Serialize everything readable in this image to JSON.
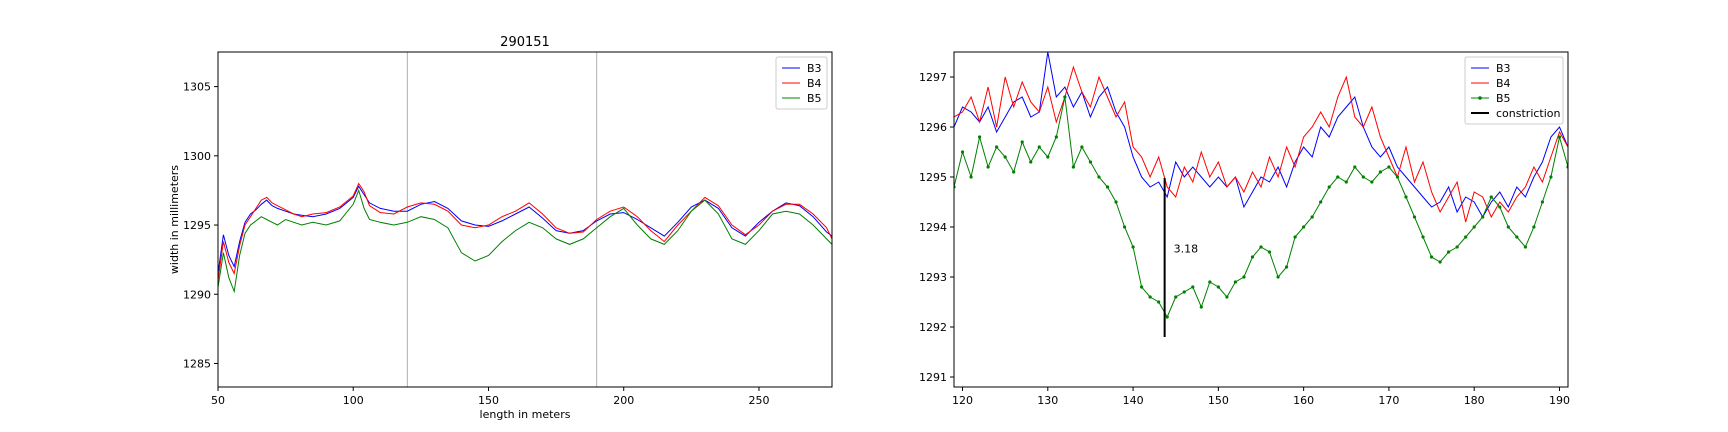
{
  "chart_data": [
    {
      "type": "line",
      "title": "290151",
      "xlabel": "length in meters",
      "ylabel": "width in millimeters",
      "xlim": [
        50,
        277
      ],
      "ylim": [
        1283.3,
        1307.5
      ],
      "xticks": [
        50,
        100,
        150,
        200,
        250
      ],
      "yticks": [
        1285,
        1290,
        1295,
        1300,
        1305
      ],
      "vlines": [
        120,
        190
      ],
      "legend": "top-right",
      "grid": false,
      "colors": {
        "B3": "#0000ff",
        "B4": "#ff0000",
        "B5": "#008000"
      },
      "series": [
        {
          "name": "B3",
          "x": [
            50,
            52,
            54,
            56,
            58,
            60,
            62,
            64,
            66,
            68,
            70,
            72,
            75,
            78,
            81,
            85,
            90,
            95,
            100,
            102,
            104,
            106,
            110,
            115,
            120,
            125,
            130,
            135,
            140,
            145,
            150,
            155,
            160,
            165,
            170,
            175,
            180,
            185,
            190,
            195,
            200,
            205,
            210,
            215,
            220,
            225,
            230,
            235,
            240,
            245,
            250,
            255,
            260,
            265,
            270,
            275,
            277
          ],
          "y": [
            1291.5,
            1294.3,
            1292.8,
            1292.0,
            1293.8,
            1295.2,
            1295.8,
            1296.1,
            1296.5,
            1296.8,
            1296.4,
            1296.2,
            1296.0,
            1295.8,
            1295.7,
            1295.6,
            1295.8,
            1296.2,
            1297.0,
            1297.8,
            1297.2,
            1296.6,
            1296.2,
            1296.0,
            1296.0,
            1296.5,
            1296.7,
            1296.2,
            1295.3,
            1295.0,
            1294.9,
            1295.3,
            1295.8,
            1296.3,
            1295.5,
            1294.6,
            1294.4,
            1294.6,
            1295.3,
            1295.8,
            1295.9,
            1295.4,
            1294.8,
            1294.2,
            1295.2,
            1296.3,
            1296.8,
            1296.2,
            1294.8,
            1294.2,
            1295.2,
            1296.0,
            1296.6,
            1296.4,
            1295.6,
            1294.5,
            1294.2
          ]
        },
        {
          "name": "B4",
          "x": [
            50,
            52,
            54,
            56,
            58,
            60,
            62,
            64,
            66,
            68,
            70,
            72,
            75,
            78,
            81,
            85,
            90,
            95,
            100,
            102,
            104,
            106,
            110,
            115,
            120,
            125,
            130,
            135,
            140,
            145,
            150,
            155,
            160,
            165,
            170,
            175,
            180,
            185,
            190,
            195,
            200,
            205,
            210,
            215,
            220,
            225,
            230,
            235,
            240,
            245,
            250,
            255,
            260,
            265,
            270,
            275,
            277
          ],
          "y": [
            1291.0,
            1293.8,
            1292.3,
            1291.5,
            1293.5,
            1295.0,
            1295.6,
            1296.2,
            1296.8,
            1297.0,
            1296.6,
            1296.4,
            1296.1,
            1295.8,
            1295.6,
            1295.8,
            1295.9,
            1296.3,
            1297.1,
            1298.0,
            1297.4,
            1296.4,
            1295.9,
            1295.8,
            1296.3,
            1296.6,
            1296.5,
            1296.0,
            1295.0,
            1294.8,
            1295.0,
            1295.6,
            1296.0,
            1296.6,
            1295.8,
            1294.8,
            1294.4,
            1294.5,
            1295.4,
            1296.0,
            1296.3,
            1295.6,
            1294.6,
            1293.8,
            1295.0,
            1296.0,
            1297.0,
            1296.4,
            1295.0,
            1294.3,
            1295.0,
            1296.0,
            1296.5,
            1296.5,
            1295.8,
            1294.8,
            1294.0
          ]
        },
        {
          "name": "B5",
          "x": [
            50,
            52,
            54,
            56,
            58,
            60,
            62,
            64,
            66,
            68,
            70,
            72,
            75,
            78,
            81,
            85,
            90,
            95,
            100,
            102,
            104,
            106,
            110,
            115,
            120,
            125,
            130,
            135,
            140,
            145,
            150,
            155,
            160,
            165,
            170,
            175,
            180,
            185,
            190,
            195,
            200,
            205,
            210,
            215,
            220,
            225,
            230,
            235,
            240,
            245,
            250,
            255,
            260,
            265,
            270,
            275,
            277
          ],
          "y": [
            1290.5,
            1293.0,
            1291.2,
            1290.2,
            1292.8,
            1294.4,
            1295.0,
            1295.3,
            1295.6,
            1295.4,
            1295.2,
            1295.0,
            1295.4,
            1295.2,
            1295.0,
            1295.2,
            1295.0,
            1295.3,
            1296.5,
            1297.5,
            1296.2,
            1295.4,
            1295.2,
            1295.0,
            1295.2,
            1295.6,
            1295.4,
            1294.8,
            1293.0,
            1292.4,
            1292.8,
            1293.8,
            1294.6,
            1295.2,
            1294.8,
            1294.0,
            1293.6,
            1294.0,
            1294.8,
            1295.6,
            1296.2,
            1295.0,
            1294.0,
            1293.6,
            1294.6,
            1296.0,
            1296.8,
            1295.8,
            1294.0,
            1293.6,
            1294.6,
            1295.8,
            1296.0,
            1295.8,
            1295.0,
            1294.0,
            1293.6
          ]
        }
      ]
    },
    {
      "type": "line",
      "title": "",
      "xlabel": "",
      "ylabel": "",
      "xlim": [
        119,
        191
      ],
      "ylim": [
        1290.8,
        1297.5
      ],
      "xticks": [
        120,
        130,
        140,
        150,
        160,
        170,
        180,
        190
      ],
      "yticks": [
        1291,
        1292,
        1293,
        1294,
        1295,
        1296,
        1297
      ],
      "legend": "top-right",
      "grid": false,
      "colors": {
        "B3": "#0000ff",
        "B4": "#ff0000",
        "B5": "#008000",
        "constriction": "#000000"
      },
      "constriction": {
        "x": 143.7,
        "y_from": 1291.8,
        "y_to": 1294.98,
        "label": "3.18"
      },
      "series": [
        {
          "name": "B3",
          "x": [
            119,
            120,
            121,
            122,
            123,
            124,
            125,
            126,
            127,
            128,
            129,
            130,
            131,
            132,
            133,
            134,
            135,
            136,
            137,
            138,
            139,
            140,
            141,
            142,
            143,
            144,
            145,
            146,
            147,
            148,
            149,
            150,
            151,
            152,
            153,
            154,
            155,
            156,
            157,
            158,
            159,
            160,
            161,
            162,
            163,
            164,
            165,
            166,
            167,
            168,
            169,
            170,
            171,
            172,
            173,
            174,
            175,
            176,
            177,
            178,
            179,
            180,
            181,
            182,
            183,
            184,
            185,
            186,
            187,
            188,
            189,
            190,
            191
          ],
          "y": [
            1296.0,
            1296.4,
            1296.3,
            1296.1,
            1296.4,
            1295.9,
            1296.2,
            1296.5,
            1296.6,
            1296.2,
            1296.3,
            1297.5,
            1296.6,
            1296.8,
            1296.4,
            1296.7,
            1296.2,
            1296.6,
            1296.8,
            1296.3,
            1296.0,
            1295.4,
            1295.0,
            1294.8,
            1294.9,
            1294.6,
            1295.3,
            1295.0,
            1295.2,
            1295.0,
            1294.8,
            1295.0,
            1294.8,
            1295.0,
            1294.4,
            1294.7,
            1295.0,
            1294.9,
            1295.2,
            1294.8,
            1295.3,
            1295.6,
            1295.4,
            1296.0,
            1295.8,
            1296.2,
            1296.4,
            1296.6,
            1296.0,
            1295.6,
            1295.4,
            1295.6,
            1295.2,
            1295.0,
            1294.8,
            1294.6,
            1294.4,
            1294.5,
            1294.8,
            1294.3,
            1294.6,
            1294.5,
            1294.2,
            1294.5,
            1294.7,
            1294.4,
            1294.8,
            1294.6,
            1295.0,
            1295.3,
            1295.8,
            1296.0,
            1295.6
          ]
        },
        {
          "name": "B4",
          "x": [
            119,
            120,
            121,
            122,
            123,
            124,
            125,
            126,
            127,
            128,
            129,
            130,
            131,
            132,
            133,
            134,
            135,
            136,
            137,
            138,
            139,
            140,
            141,
            142,
            143,
            144,
            145,
            146,
            147,
            148,
            149,
            150,
            151,
            152,
            153,
            154,
            155,
            156,
            157,
            158,
            159,
            160,
            161,
            162,
            163,
            164,
            165,
            166,
            167,
            168,
            169,
            170,
            171,
            172,
            173,
            174,
            175,
            176,
            177,
            178,
            179,
            180,
            181,
            182,
            183,
            184,
            185,
            186,
            187,
            188,
            189,
            190,
            191
          ],
          "y": [
            1296.2,
            1296.3,
            1296.6,
            1296.1,
            1296.8,
            1296.0,
            1297.0,
            1296.4,
            1296.9,
            1296.5,
            1296.3,
            1296.8,
            1296.1,
            1296.6,
            1297.2,
            1296.7,
            1296.4,
            1297.0,
            1296.6,
            1296.2,
            1296.5,
            1295.6,
            1295.4,
            1295.0,
            1295.4,
            1294.8,
            1294.6,
            1295.2,
            1294.9,
            1295.5,
            1295.0,
            1295.3,
            1294.8,
            1295.0,
            1294.7,
            1295.1,
            1294.8,
            1295.4,
            1295.0,
            1295.6,
            1295.2,
            1295.8,
            1296.0,
            1296.3,
            1296.0,
            1296.6,
            1297.0,
            1296.2,
            1296.0,
            1296.4,
            1295.8,
            1295.4,
            1295.0,
            1295.6,
            1294.9,
            1295.3,
            1294.7,
            1294.3,
            1294.6,
            1294.9,
            1294.1,
            1294.7,
            1294.6,
            1294.2,
            1294.5,
            1294.3,
            1294.6,
            1294.8,
            1295.2,
            1294.9,
            1295.4,
            1295.9,
            1295.6
          ]
        },
        {
          "name": "B5",
          "x": [
            119,
            120,
            121,
            122,
            123,
            124,
            125,
            126,
            127,
            128,
            129,
            130,
            131,
            132,
            133,
            134,
            135,
            136,
            137,
            138,
            139,
            140,
            141,
            142,
            143,
            144,
            145,
            146,
            147,
            148,
            149,
            150,
            151,
            152,
            153,
            154,
            155,
            156,
            157,
            158,
            159,
            160,
            161,
            162,
            163,
            164,
            165,
            166,
            167,
            168,
            169,
            170,
            171,
            172,
            173,
            174,
            175,
            176,
            177,
            178,
            179,
            180,
            181,
            182,
            183,
            184,
            185,
            186,
            187,
            188,
            189,
            190,
            191
          ],
          "y": [
            1294.8,
            1295.5,
            1295.0,
            1295.8,
            1295.2,
            1295.6,
            1295.4,
            1295.1,
            1295.7,
            1295.3,
            1295.6,
            1295.4,
            1295.8,
            1296.6,
            1295.2,
            1295.6,
            1295.3,
            1295.0,
            1294.8,
            1294.5,
            1294.0,
            1293.6,
            1292.8,
            1292.6,
            1292.5,
            1292.2,
            1292.6,
            1292.7,
            1292.8,
            1292.4,
            1292.9,
            1292.8,
            1292.6,
            1292.9,
            1293.0,
            1293.4,
            1293.6,
            1293.5,
            1293.0,
            1293.2,
            1293.8,
            1294.0,
            1294.2,
            1294.5,
            1294.8,
            1295.0,
            1294.9,
            1295.2,
            1295.0,
            1294.9,
            1295.1,
            1295.2,
            1295.0,
            1294.6,
            1294.2,
            1293.8,
            1293.4,
            1293.3,
            1293.5,
            1293.6,
            1293.8,
            1294.0,
            1294.2,
            1294.6,
            1294.4,
            1294.0,
            1293.8,
            1293.6,
            1294.0,
            1294.5,
            1295.0,
            1295.8,
            1295.2
          ]
        }
      ]
    }
  ]
}
